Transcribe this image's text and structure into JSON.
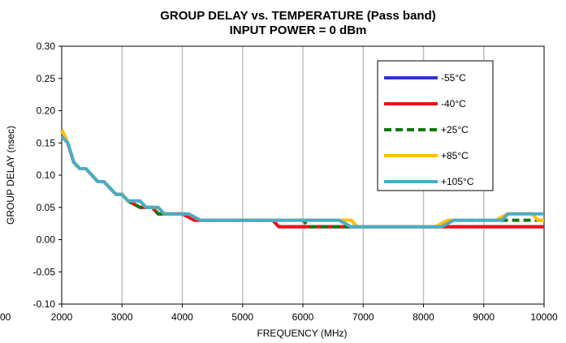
{
  "chart_data": {
    "type": "line",
    "title": "GROUP DELAY vs. TEMPERATURE (Pass band)",
    "subtitle": "INPUT POWER = 0 dBm",
    "xlabel": "FREQUENCY (MHz)",
    "ylabel": "GROUP DELAY (nsec)",
    "xlim": [
      2000,
      10000
    ],
    "ylim": [
      -0.1,
      0.3
    ],
    "x_ticks": [
      2000,
      3000,
      4000,
      5000,
      6000,
      7000,
      8000,
      9000,
      10000
    ],
    "x_tick_labels": [
      "2000",
      "3000",
      "4000",
      "5000",
      "6000",
      "7000",
      "8000",
      "9000",
      "10000"
    ],
    "x_left_cut_label": "00",
    "y_ticks": [
      0.3,
      0.25,
      0.2,
      0.15,
      0.1,
      0.05,
      0.0,
      -0.05,
      -0.1
    ],
    "y_tick_labels": [
      "0.30",
      "0.25",
      "0.20",
      "0.15",
      "0.10",
      "0.05",
      "0.00",
      "-0.05",
      "-0.10"
    ],
    "grid": "vertical",
    "legend_position": "top-right",
    "series": [
      {
        "name": "-55°C",
        "color": "#3333cc",
        "dash": "solid",
        "points": [
          [
            2000,
            0.17
          ],
          [
            2100,
            0.15
          ],
          [
            2200,
            0.12
          ],
          [
            2300,
            0.11
          ],
          [
            2400,
            0.11
          ],
          [
            2600,
            0.09
          ],
          [
            2700,
            0.09
          ],
          [
            2900,
            0.07
          ],
          [
            3000,
            0.07
          ],
          [
            3100,
            0.06
          ],
          [
            3300,
            0.05
          ],
          [
            3500,
            0.05
          ],
          [
            3600,
            0.04
          ],
          [
            4000,
            0.04
          ],
          [
            4200,
            0.03
          ],
          [
            5500,
            0.03
          ],
          [
            5600,
            0.02
          ],
          [
            8300,
            0.02
          ],
          [
            8500,
            0.02
          ],
          [
            10000,
            0.02
          ]
        ]
      },
      {
        "name": "-40°C",
        "color": "#ee1111",
        "dash": "solid",
        "points": [
          [
            2000,
            0.17
          ],
          [
            2100,
            0.15
          ],
          [
            2200,
            0.12
          ],
          [
            2300,
            0.11
          ],
          [
            2400,
            0.11
          ],
          [
            2600,
            0.09
          ],
          [
            2700,
            0.09
          ],
          [
            2900,
            0.07
          ],
          [
            3000,
            0.07
          ],
          [
            3100,
            0.06
          ],
          [
            3300,
            0.05
          ],
          [
            3500,
            0.05
          ],
          [
            3600,
            0.04
          ],
          [
            4000,
            0.04
          ],
          [
            4200,
            0.03
          ],
          [
            5500,
            0.03
          ],
          [
            5600,
            0.02
          ],
          [
            8300,
            0.02
          ],
          [
            8500,
            0.02
          ],
          [
            10000,
            0.02
          ]
        ]
      },
      {
        "name": "+25°C",
        "color": "#117711",
        "dash": "dashed",
        "points": [
          [
            2000,
            0.17
          ],
          [
            2100,
            0.15
          ],
          [
            2200,
            0.12
          ],
          [
            2300,
            0.11
          ],
          [
            2400,
            0.11
          ],
          [
            2600,
            0.09
          ],
          [
            2700,
            0.09
          ],
          [
            2900,
            0.07
          ],
          [
            3000,
            0.07
          ],
          [
            3100,
            0.06
          ],
          [
            3300,
            0.05
          ],
          [
            3500,
            0.05
          ],
          [
            3600,
            0.04
          ],
          [
            4100,
            0.04
          ],
          [
            4300,
            0.03
          ],
          [
            6000,
            0.03
          ],
          [
            6100,
            0.02
          ],
          [
            6600,
            0.02
          ],
          [
            6700,
            0.02
          ],
          [
            8300,
            0.02
          ],
          [
            8500,
            0.03
          ],
          [
            9400,
            0.03
          ],
          [
            9500,
            0.03
          ],
          [
            9700,
            0.03
          ],
          [
            10000,
            0.03
          ]
        ]
      },
      {
        "name": "+85°C",
        "color": "#ffc000",
        "dash": "solid",
        "points": [
          [
            2000,
            0.17
          ],
          [
            2100,
            0.15
          ],
          [
            2200,
            0.12
          ],
          [
            2300,
            0.11
          ],
          [
            2400,
            0.11
          ],
          [
            2600,
            0.09
          ],
          [
            2700,
            0.09
          ],
          [
            2900,
            0.07
          ],
          [
            3000,
            0.07
          ],
          [
            3100,
            0.06
          ],
          [
            3300,
            0.06
          ],
          [
            3400,
            0.05
          ],
          [
            3600,
            0.05
          ],
          [
            3700,
            0.04
          ],
          [
            4100,
            0.04
          ],
          [
            4300,
            0.03
          ],
          [
            6800,
            0.03
          ],
          [
            6900,
            0.02
          ],
          [
            8200,
            0.02
          ],
          [
            8400,
            0.03
          ],
          [
            9200,
            0.03
          ],
          [
            9400,
            0.04
          ],
          [
            9800,
            0.04
          ],
          [
            9900,
            0.03
          ],
          [
            10000,
            0.03
          ]
        ]
      },
      {
        "name": "+105°C",
        "color": "#4bacc6",
        "dash": "solid",
        "points": [
          [
            2000,
            0.16
          ],
          [
            2100,
            0.15
          ],
          [
            2200,
            0.12
          ],
          [
            2300,
            0.11
          ],
          [
            2400,
            0.11
          ],
          [
            2600,
            0.09
          ],
          [
            2700,
            0.09
          ],
          [
            2900,
            0.07
          ],
          [
            3000,
            0.07
          ],
          [
            3100,
            0.06
          ],
          [
            3300,
            0.06
          ],
          [
            3400,
            0.05
          ],
          [
            3600,
            0.05
          ],
          [
            3700,
            0.04
          ],
          [
            4100,
            0.04
          ],
          [
            4300,
            0.03
          ],
          [
            6600,
            0.03
          ],
          [
            6800,
            0.02
          ],
          [
            8300,
            0.02
          ],
          [
            8500,
            0.03
          ],
          [
            9300,
            0.03
          ],
          [
            9400,
            0.04
          ],
          [
            10000,
            0.04
          ]
        ]
      }
    ]
  }
}
